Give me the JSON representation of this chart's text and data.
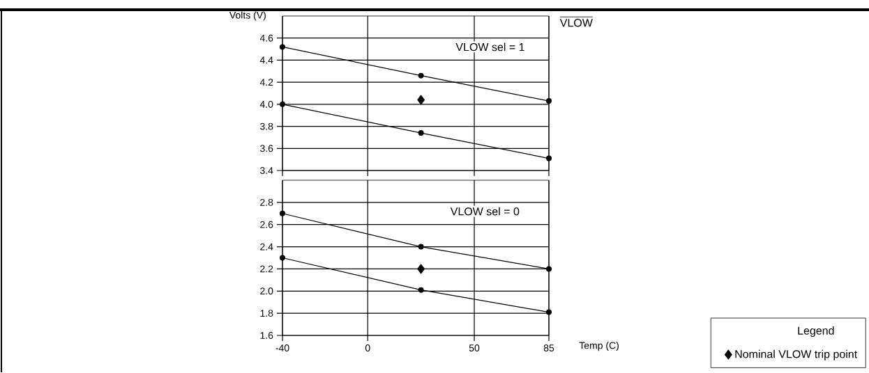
{
  "chart_data": [
    {
      "type": "line",
      "ylabel": "Volts (V)",
      "x": [
        -40,
        25,
        85
      ],
      "xlim": [
        -40,
        85
      ],
      "ylim": [
        3.4,
        4.8
      ],
      "xticks": [
        -40,
        0,
        50,
        85
      ],
      "yticks": [
        3.4,
        3.6,
        3.8,
        {
          "value": 4.0,
          "label": "4.0"
        },
        4.2,
        4.4,
        4.6
      ],
      "grid": true,
      "tick_labels": "y",
      "annotations": [
        "VLOW sel = 1",
        "VLOW"
      ],
      "series": [
        {
          "marker": "circle",
          "color": "#000000",
          "values": [
            4.52,
            4.26,
            4.03
          ]
        },
        {
          "marker": "circle",
          "color": "#000000",
          "values": [
            4.0,
            3.74,
            3.51
          ]
        },
        {
          "type": "scatter",
          "marker": "diamond",
          "color": "#000000",
          "x": [
            25
          ],
          "values": [
            4.04
          ]
        }
      ]
    },
    {
      "type": "line",
      "xlabel": "Temp (C)",
      "x": [
        -40,
        25,
        85
      ],
      "xlim": [
        -40,
        85
      ],
      "ylim": [
        1.6,
        3.0
      ],
      "xticks": [
        -40,
        0,
        50,
        85
      ],
      "yticks": [
        1.6,
        1.8,
        {
          "value": 2.0,
          "label": "2.0"
        },
        2.2,
        2.4,
        2.6,
        2.8
      ],
      "grid": true,
      "annotations": [
        "VLOW sel = 0"
      ],
      "legend": "bottom right",
      "legend_title": "Legend",
      "series": [
        {
          "marker": "circle",
          "color": "#000000",
          "values": [
            2.7,
            2.4,
            2.2
          ]
        },
        {
          "marker": "circle",
          "color": "#000000",
          "values": [
            2.3,
            2.01,
            1.81
          ]
        },
        {
          "type": "scatter",
          "marker": "diamond",
          "color": "#000000",
          "name": "Nominal VLOW trip point",
          "x": [
            25
          ],
          "values": [
            2.2
          ]
        }
      ]
    }
  ]
}
